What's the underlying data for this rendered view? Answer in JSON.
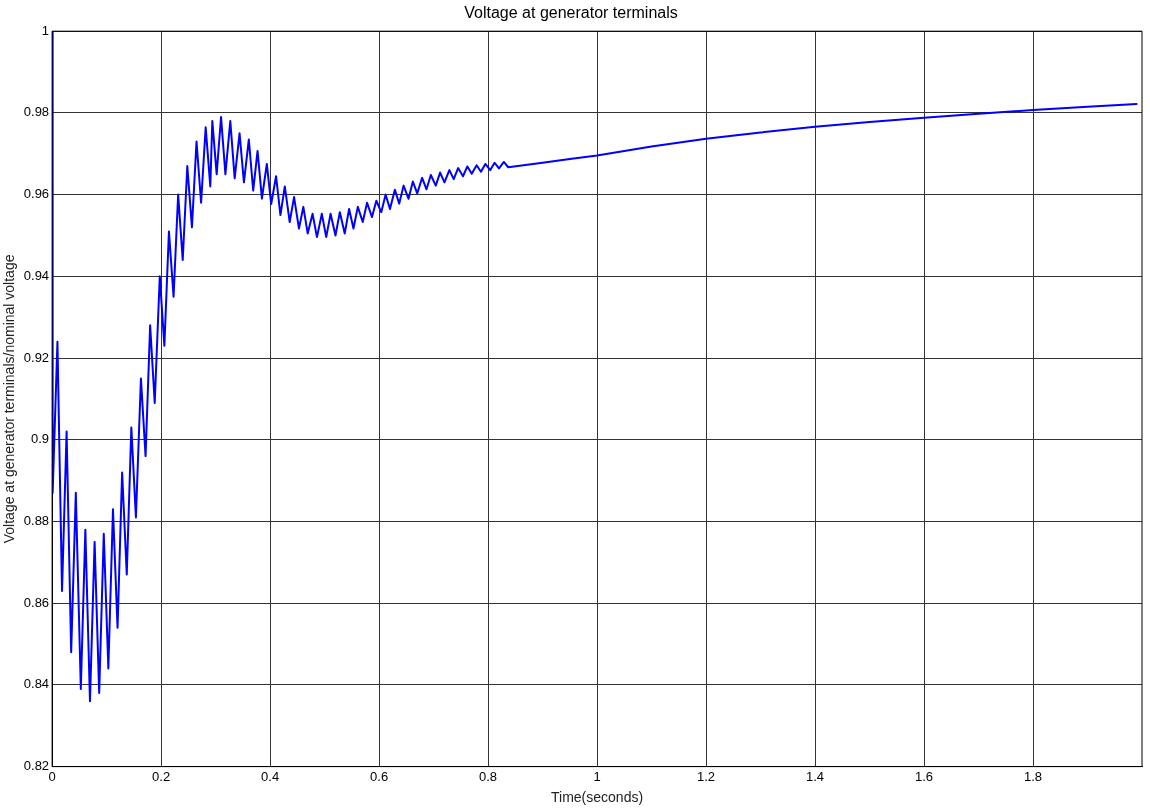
{
  "chart_data": {
    "type": "line",
    "title": "Voltage at generator terminals",
    "xlabel": "Time(seconds)",
    "ylabel": "Voltage at generator terminals/nominal voltage",
    "xlim": [
      0,
      2
    ],
    "xticks": [
      0,
      0.2,
      0.4,
      0.6,
      0.8,
      1,
      1.2,
      1.4,
      1.6,
      1.8
    ],
    "ylim": [
      0.82,
      1
    ],
    "yticks": [
      0.82,
      0.84,
      0.86,
      0.88,
      0.9,
      0.92,
      0.94,
      0.96,
      0.98,
      1
    ],
    "grid": true,
    "marker": "none",
    "line_style": "solid",
    "series": [
      {
        "color": "#0000ff",
        "x": [
          0,
          0.001,
          0.0098,
          0.0182,
          0.0266,
          0.035,
          0.0435,
          0.0527,
          0.061,
          0.0695,
          0.078,
          0.0864,
          0.0948,
          0.1032,
          0.1117,
          0.1201,
          0.1285,
          0.137,
          0.1454,
          0.1538,
          0.163,
          0.1715,
          0.1799,
          0.1883,
          0.1976,
          0.206,
          0.2144,
          0.2229,
          0.2313,
          0.2397,
          0.2481,
          0.2566,
          0.265,
          0.2734,
          0.2818,
          0.2903,
          0.294,
          0.302,
          0.31,
          0.318,
          0.327,
          0.335,
          0.344,
          0.352,
          0.361,
          0.369,
          0.377,
          0.385,
          0.394,
          0.402,
          0.411,
          0.419,
          0.427,
          0.436,
          0.444,
          0.453,
          0.461,
          0.469,
          0.478,
          0.486,
          0.495,
          0.503,
          0.511,
          0.52,
          0.528,
          0.537,
          0.545,
          0.553,
          0.561,
          0.57,
          0.578,
          0.587,
          0.595,
          0.604,
          0.612,
          0.62,
          0.629,
          0.637,
          0.645,
          0.654,
          0.662,
          0.67,
          0.679,
          0.687,
          0.695,
          0.704,
          0.712,
          0.72,
          0.729,
          0.737,
          0.745,
          0.754,
          0.762,
          0.77,
          0.779,
          0.787,
          0.795,
          0.804,
          0.812,
          0.82,
          0.829,
          0.837,
          0.9,
          0.95,
          1,
          1.1,
          1.2,
          1.3,
          1.4,
          1.5,
          1.6,
          1.7,
          1.8,
          1.9,
          1.99
        ],
        "values": [
          1,
          0.887,
          0.924,
          0.863,
          0.902,
          0.848,
          0.887,
          0.839,
          0.878,
          0.836,
          0.875,
          0.838,
          0.877,
          0.844,
          0.883,
          0.854,
          0.892,
          0.867,
          0.903,
          0.881,
          0.915,
          0.896,
          0.928,
          0.909,
          0.94,
          0.923,
          0.951,
          0.935,
          0.96,
          0.944,
          0.967,
          0.952,
          0.973,
          0.958,
          0.9765,
          0.962,
          0.978,
          0.965,
          0.979,
          0.965,
          0.978,
          0.964,
          0.975,
          0.963,
          0.9735,
          0.961,
          0.9707,
          0.959,
          0.9675,
          0.9577,
          0.9645,
          0.955,
          0.962,
          0.9533,
          0.9594,
          0.9517,
          0.957,
          0.9505,
          0.9553,
          0.9496,
          0.9553,
          0.9496,
          0.9553,
          0.95,
          0.9557,
          0.9505,
          0.9565,
          0.9517,
          0.957,
          0.9533,
          0.958,
          0.9545,
          0.9585,
          0.9557,
          0.96,
          0.9565,
          0.9612,
          0.9578,
          0.9622,
          0.959,
          0.9632,
          0.9603,
          0.9641,
          0.9613,
          0.9648,
          0.9622,
          0.9654,
          0.963,
          0.966,
          0.9638,
          0.9665,
          0.9645,
          0.9669,
          0.9651,
          0.9672,
          0.9656,
          0.9675,
          0.966,
          0.9678,
          0.9664,
          0.968,
          0.9667,
          0.9678,
          0.9687,
          0.9696,
          0.9718,
          0.9737,
          0.9752,
          0.9766,
          0.9778,
          0.9788,
          0.9798,
          0.9807,
          0.9815,
          0.9822
        ]
      }
    ]
  }
}
